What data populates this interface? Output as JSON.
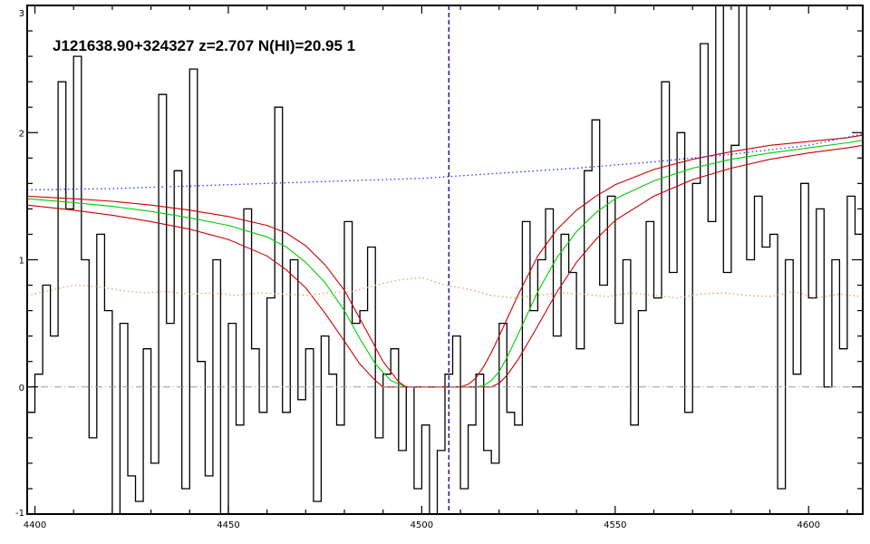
{
  "chart_data": {
    "type": "line",
    "title": "J121638.90+324327 z=2.707 N(HI)=20.95 1",
    "xlabel": "",
    "ylabel": "",
    "xlim": [
      4398,
      4614
    ],
    "ylim": [
      -1,
      3
    ],
    "xticks": [
      4400,
      4450,
      4500,
      4550,
      4600
    ],
    "xtick_labels": [
      "4400",
      "4450",
      "4500",
      "4550",
      "4600"
    ],
    "yticks": [
      -1,
      0,
      1,
      2,
      3
    ],
    "ytick_labels": [
      "-1",
      "0",
      "1",
      "2",
      "3"
    ],
    "grid": false,
    "colors": {
      "flux": "#000000",
      "fit": "#00cc00",
      "fit_bounds": "#cc0000",
      "continuum": "#3333ff",
      "error": "#e8a060",
      "zero_line": "#999999",
      "center_line": "#000099"
    },
    "series": [
      {
        "style": "step",
        "color": "#000000",
        "x": [
          4398,
          4400,
          4402,
          4404,
          4406,
          4408,
          4410,
          4412,
          4414,
          4416,
          4418,
          4420,
          4422,
          4424,
          4426,
          4428,
          4430,
          4432,
          4434,
          4436,
          4438,
          4440,
          4442,
          4444,
          4446,
          4448,
          4450,
          4452,
          4454,
          4456,
          4458,
          4460,
          4462,
          4464,
          4466,
          4468,
          4470,
          4472,
          4474,
          4476,
          4478,
          4480,
          4482,
          4484,
          4486,
          4488,
          4490,
          4492,
          4494,
          4496,
          4498,
          4500,
          4502,
          4504,
          4506,
          4508,
          4510,
          4512,
          4514,
          4516,
          4518,
          4520,
          4522,
          4524,
          4526,
          4528,
          4530,
          4532,
          4534,
          4536,
          4538,
          4540,
          4542,
          4544,
          4546,
          4548,
          4550,
          4552,
          4554,
          4556,
          4558,
          4560,
          4562,
          4564,
          4566,
          4568,
          4570,
          4572,
          4574,
          4576,
          4578,
          4580,
          4582,
          4584,
          4586,
          4588,
          4590,
          4592,
          4594,
          4596,
          4598,
          4600,
          4602,
          4604,
          4606,
          4608,
          4610,
          4612
        ],
        "y": [
          -0.2,
          0.1,
          0.8,
          0.4,
          2.4,
          1.4,
          2.6,
          1.0,
          -0.4,
          1.2,
          0.6,
          -1.0,
          0.5,
          -0.7,
          -0.9,
          0.3,
          -0.6,
          2.3,
          0.5,
          1.7,
          -0.8,
          2.5,
          0.2,
          -0.7,
          1.0,
          -1.0,
          0.5,
          -0.3,
          1.4,
          0.3,
          -0.2,
          0.7,
          2.2,
          -0.2,
          1.0,
          -0.1,
          0.3,
          -0.9,
          0.4,
          0.1,
          -0.3,
          1.3,
          0.5,
          0.6,
          1.1,
          -0.4,
          0.1,
          0.3,
          -0.5,
          0.0,
          -0.8,
          -0.3,
          -1.0,
          -0.5,
          0.1,
          0.4,
          -0.8,
          -0.3,
          0.1,
          -0.5,
          -0.6,
          0.5,
          -0.2,
          -0.3,
          1.3,
          0.6,
          1.0,
          1.4,
          0.4,
          1.2,
          0.9,
          0.3,
          1.7,
          2.1,
          0.8,
          1.5,
          0.5,
          1.0,
          -0.3,
          0.6,
          1.3,
          0.7,
          2.4,
          0.9,
          2.0,
          -0.2,
          1.6,
          2.7,
          1.3,
          3.1,
          0.9,
          1.9,
          3.0,
          1.0,
          1.5,
          1.1,
          1.2,
          -0.8,
          1.0,
          0.1,
          1.6,
          0.7,
          1.4,
          0.0,
          1.0,
          0.3,
          1.5,
          1.2
        ]
      },
      {
        "style": "line",
        "color": "#00cc00",
        "x": [
          4398,
          4410,
          4420,
          4430,
          4440,
          4450,
          4460,
          4465,
          4470,
          4475,
          4480,
          4484,
          4488,
          4492,
          4496,
          4498,
          4502,
          4506,
          4510,
          4514,
          4516,
          4518,
          4520,
          4522,
          4525,
          4530,
          4535,
          4540,
          4545,
          4550,
          4560,
          4570,
          4580,
          4590,
          4600,
          4610,
          4614
        ],
        "y": [
          1.48,
          1.45,
          1.42,
          1.38,
          1.33,
          1.27,
          1.18,
          1.1,
          0.98,
          0.82,
          0.6,
          0.38,
          0.18,
          0.05,
          0.0,
          0.0,
          0.0,
          0.0,
          0.0,
          0.0,
          0.01,
          0.05,
          0.12,
          0.23,
          0.42,
          0.75,
          1.02,
          1.22,
          1.37,
          1.48,
          1.62,
          1.72,
          1.79,
          1.84,
          1.88,
          1.92,
          1.94
        ]
      },
      {
        "style": "line",
        "color": "#cc0000",
        "x": [
          4398,
          4410,
          4420,
          4430,
          4440,
          4450,
          4460,
          4465,
          4470,
          4475,
          4480,
          4485,
          4490,
          4494,
          4496,
          4498,
          4502,
          4506,
          4510,
          4512,
          4514,
          4516,
          4518,
          4520,
          4525,
          4530,
          4535,
          4540,
          4545,
          4550,
          4560,
          4570,
          4580,
          4590,
          4600,
          4610,
          4614
        ],
        "y": [
          1.5,
          1.48,
          1.46,
          1.43,
          1.39,
          1.34,
          1.27,
          1.21,
          1.11,
          0.96,
          0.76,
          0.48,
          0.2,
          0.04,
          0.0,
          0.0,
          0.0,
          0.0,
          0.0,
          0.02,
          0.07,
          0.16,
          0.27,
          0.4,
          0.73,
          1.03,
          1.24,
          1.39,
          1.5,
          1.59,
          1.71,
          1.79,
          1.85,
          1.9,
          1.93,
          1.96,
          1.98
        ]
      },
      {
        "style": "line",
        "color": "#cc0000",
        "x": [
          4398,
          4410,
          4420,
          4430,
          4440,
          4450,
          4460,
          4465,
          4470,
          4475,
          4480,
          4484,
          4488,
          4490,
          4494,
          4498,
          4502,
          4506,
          4510,
          4514,
          4518,
          4520,
          4522,
          4525,
          4530,
          4535,
          4540,
          4545,
          4550,
          4560,
          4570,
          4580,
          4590,
          4600,
          4610,
          4614
        ],
        "y": [
          1.43,
          1.39,
          1.35,
          1.3,
          1.24,
          1.16,
          1.03,
          0.92,
          0.78,
          0.58,
          0.36,
          0.18,
          0.05,
          0.0,
          0.0,
          0.0,
          0.0,
          0.0,
          0.0,
          0.0,
          0.0,
          0.03,
          0.09,
          0.22,
          0.48,
          0.75,
          0.98,
          1.16,
          1.31,
          1.5,
          1.63,
          1.72,
          1.79,
          1.84,
          1.88,
          1.9
        ]
      },
      {
        "style": "dotted",
        "color": "#3333ff",
        "x": [
          4398,
          4420,
          4440,
          4460,
          4480,
          4500,
          4520,
          4540,
          4560,
          4580,
          4600,
          4614
        ],
        "y": [
          1.55,
          1.56,
          1.58,
          1.6,
          1.62,
          1.64,
          1.68,
          1.72,
          1.77,
          1.83,
          1.9,
          1.99
        ]
      },
      {
        "style": "dotted",
        "color": "#e8a060",
        "x": [
          4398,
          4404,
          4410,
          4416,
          4422,
          4428,
          4434,
          4440,
          4446,
          4452,
          4458,
          4464,
          4470,
          4476,
          4482,
          4488,
          4494,
          4500,
          4506,
          4512,
          4518,
          4524,
          4530,
          4536,
          4542,
          4548,
          4554,
          4560,
          4566,
          4572,
          4578,
          4584,
          4590,
          4596,
          4602,
          4608,
          4614
        ],
        "y": [
          0.72,
          0.76,
          0.8,
          0.79,
          0.76,
          0.74,
          0.75,
          0.73,
          0.74,
          0.72,
          0.74,
          0.73,
          0.72,
          0.74,
          0.75,
          0.8,
          0.84,
          0.86,
          0.8,
          0.77,
          0.72,
          0.7,
          0.72,
          0.74,
          0.73,
          0.71,
          0.74,
          0.72,
          0.7,
          0.73,
          0.74,
          0.72,
          0.71,
          0.75,
          0.7,
          0.73,
          0.71
        ]
      },
      {
        "style": "dashdot",
        "color": "#999999",
        "x": [
          4398,
          4614
        ],
        "y": [
          0,
          0
        ]
      }
    ],
    "vlines": [
      {
        "x": 4507,
        "style": "dashed",
        "color": "#000099"
      }
    ]
  }
}
